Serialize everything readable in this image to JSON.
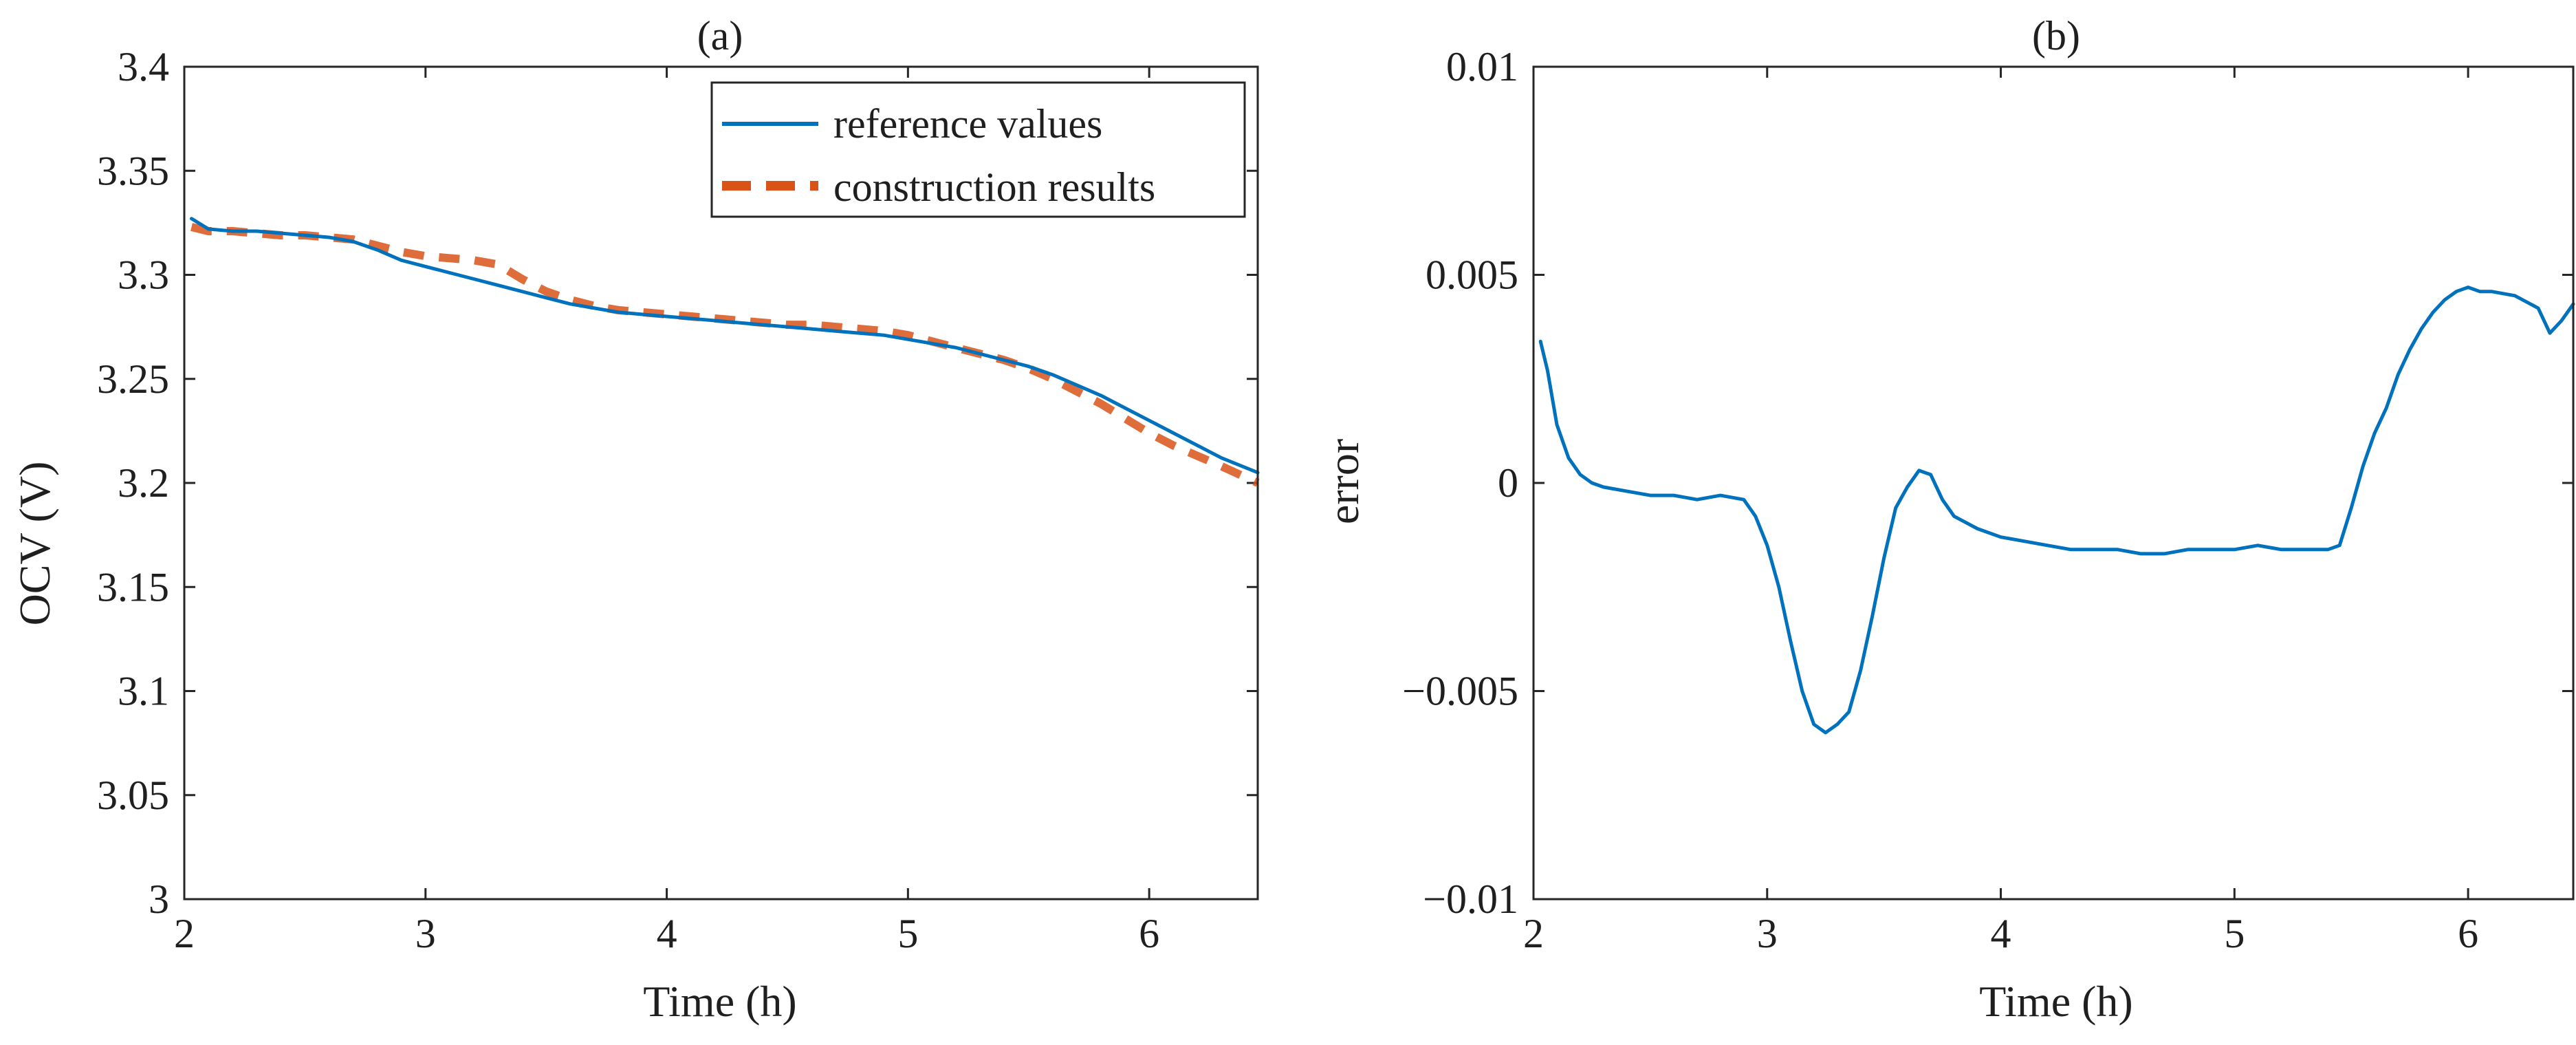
{
  "chart_data": [
    {
      "type": "line",
      "panel_label": "(a)",
      "xlabel": "Time (h)",
      "ylabel": "OCV (V)",
      "xlim": [
        2,
        6.45
      ],
      "ylim": [
        3,
        3.4
      ],
      "xticks": [
        "2",
        "3",
        "4",
        "5",
        "6"
      ],
      "xtick_values": [
        2,
        3,
        4,
        5,
        6
      ],
      "yticks": [
        "3",
        "3.05",
        "3.1",
        "3.15",
        "3.2",
        "3.25",
        "3.3",
        "3.35",
        "3.4"
      ],
      "ytick_values": [
        3,
        3.05,
        3.1,
        3.15,
        3.2,
        3.25,
        3.3,
        3.35,
        3.4
      ],
      "legend_position": "top-right",
      "series": [
        {
          "name": "reference values",
          "style": "solid",
          "color": "#0072bd",
          "x": [
            2.03,
            2.1,
            2.2,
            2.3,
            2.4,
            2.5,
            2.6,
            2.7,
            2.8,
            2.9,
            3.0,
            3.1,
            3.2,
            3.3,
            3.4,
            3.5,
            3.6,
            3.7,
            3.8,
            3.9,
            4.0,
            4.1,
            4.2,
            4.3,
            4.4,
            4.5,
            4.6,
            4.7,
            4.8,
            4.9,
            5.0,
            5.1,
            5.2,
            5.3,
            5.4,
            5.5,
            5.6,
            5.7,
            5.8,
            5.9,
            6.0,
            6.1,
            6.2,
            6.3,
            6.45
          ],
          "y": [
            3.327,
            3.322,
            3.321,
            3.321,
            3.32,
            3.319,
            3.318,
            3.316,
            3.312,
            3.307,
            3.304,
            3.301,
            3.298,
            3.295,
            3.292,
            3.289,
            3.286,
            3.284,
            3.282,
            3.281,
            3.28,
            3.279,
            3.278,
            3.277,
            3.276,
            3.275,
            3.274,
            3.273,
            3.272,
            3.271,
            3.269,
            3.267,
            3.265,
            3.262,
            3.259,
            3.256,
            3.252,
            3.247,
            3.242,
            3.236,
            3.23,
            3.224,
            3.218,
            3.212,
            3.205
          ]
        },
        {
          "name": "construction results",
          "style": "dashed",
          "color": "#d95319",
          "x": [
            2.03,
            2.1,
            2.2,
            2.3,
            2.4,
            2.5,
            2.6,
            2.7,
            2.8,
            2.9,
            3.0,
            3.1,
            3.2,
            3.3,
            3.4,
            3.5,
            3.6,
            3.7,
            3.8,
            3.9,
            4.0,
            4.1,
            4.2,
            4.3,
            4.4,
            4.5,
            4.6,
            4.7,
            4.8,
            4.9,
            5.0,
            5.1,
            5.2,
            5.3,
            5.4,
            5.5,
            5.6,
            5.7,
            5.8,
            5.9,
            6.0,
            6.1,
            6.2,
            6.3,
            6.45
          ],
          "y": [
            3.323,
            3.321,
            3.321,
            3.32,
            3.319,
            3.319,
            3.318,
            3.317,
            3.314,
            3.311,
            3.309,
            3.308,
            3.307,
            3.305,
            3.298,
            3.292,
            3.288,
            3.285,
            3.283,
            3.282,
            3.281,
            3.28,
            3.279,
            3.278,
            3.277,
            3.276,
            3.276,
            3.275,
            3.274,
            3.273,
            3.271,
            3.268,
            3.265,
            3.262,
            3.259,
            3.255,
            3.25,
            3.244,
            3.238,
            3.231,
            3.224,
            3.218,
            3.213,
            3.208,
            3.2
          ]
        }
      ]
    },
    {
      "type": "line",
      "panel_label": "(b)",
      "xlabel": "Time (h)",
      "ylabel": "error",
      "xlim": [
        2,
        6.45
      ],
      "ylim": [
        -0.01,
        0.01
      ],
      "xticks": [
        "2",
        "3",
        "4",
        "5",
        "6"
      ],
      "xtick_values": [
        2,
        3,
        4,
        5,
        6
      ],
      "yticks": [
        "−0.01",
        "−0.005",
        "0",
        "0.005",
        "0.01"
      ],
      "ytick_values": [
        -0.01,
        -0.005,
        0,
        0.005,
        0.01
      ],
      "series": [
        {
          "name": "error",
          "style": "solid",
          "color": "#0072bd",
          "x": [
            2.03,
            2.06,
            2.1,
            2.15,
            2.2,
            2.25,
            2.3,
            2.4,
            2.5,
            2.6,
            2.7,
            2.8,
            2.9,
            2.95,
            3.0,
            3.05,
            3.1,
            3.15,
            3.2,
            3.25,
            3.3,
            3.35,
            3.4,
            3.45,
            3.5,
            3.55,
            3.6,
            3.65,
            3.7,
            3.75,
            3.8,
            3.9,
            4.0,
            4.1,
            4.2,
            4.3,
            4.4,
            4.5,
            4.6,
            4.7,
            4.8,
            4.9,
            5.0,
            5.1,
            5.2,
            5.3,
            5.4,
            5.45,
            5.5,
            5.55,
            5.6,
            5.65,
            5.7,
            5.75,
            5.8,
            5.85,
            5.9,
            5.95,
            6.0,
            6.05,
            6.1,
            6.2,
            6.3,
            6.35,
            6.4,
            6.45
          ],
          "y": [
            0.0034,
            0.0027,
            0.0014,
            0.0006,
            0.0002,
            0.0,
            -0.0001,
            -0.0002,
            -0.0003,
            -0.0003,
            -0.0004,
            -0.0003,
            -0.0004,
            -0.0008,
            -0.0015,
            -0.0025,
            -0.0038,
            -0.005,
            -0.0058,
            -0.006,
            -0.0058,
            -0.0055,
            -0.0045,
            -0.0032,
            -0.0018,
            -0.0006,
            -0.0001,
            0.0003,
            0.0002,
            -0.0004,
            -0.0008,
            -0.0011,
            -0.0013,
            -0.0014,
            -0.0015,
            -0.0016,
            -0.0016,
            -0.0016,
            -0.0017,
            -0.0017,
            -0.0016,
            -0.0016,
            -0.0016,
            -0.0015,
            -0.0016,
            -0.0016,
            -0.0016,
            -0.0015,
            -0.0006,
            0.0004,
            0.0012,
            0.0018,
            0.0026,
            0.0032,
            0.0037,
            0.0041,
            0.0044,
            0.0046,
            0.0047,
            0.0046,
            0.0046,
            0.0045,
            0.0042,
            0.0036,
            0.0039,
            0.0043
          ]
        }
      ]
    }
  ]
}
